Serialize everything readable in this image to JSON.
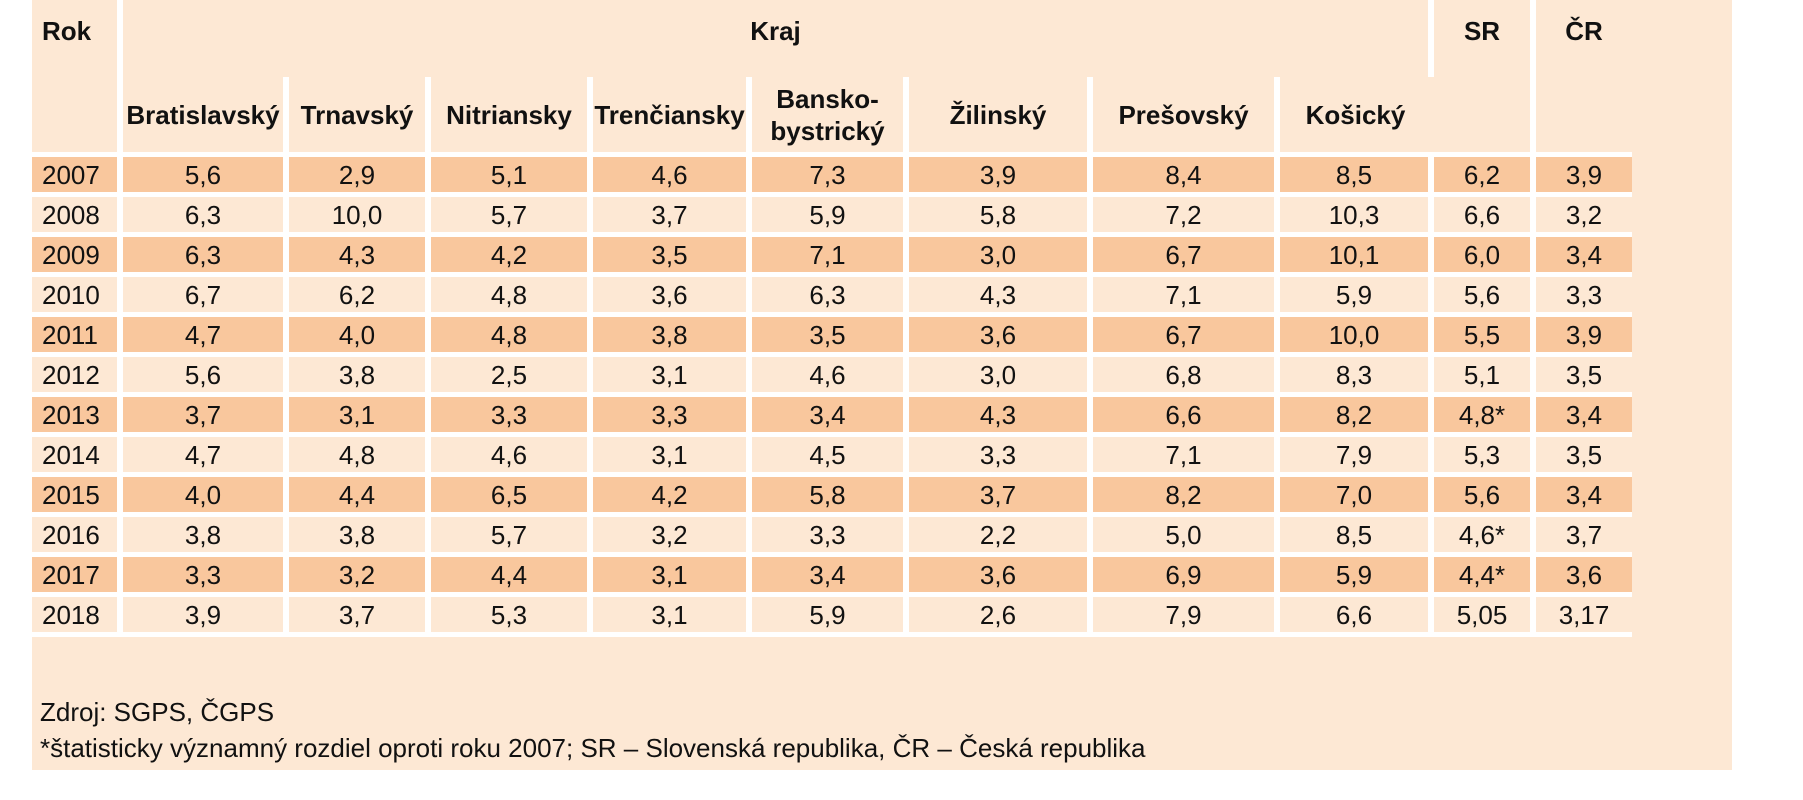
{
  "table": {
    "header": {
      "rok": "Rok",
      "kraj": "Kraj",
      "sr": "SR",
      "cr": "ČR",
      "regions": [
        "Bratislavský",
        "Trnavský",
        "Nitriansky",
        "Trenčiansky",
        "Bansko-\nbystrický",
        "Žilinský",
        "Prešovský",
        "Košický"
      ]
    },
    "rows": [
      {
        "year": "2007",
        "cells": [
          "5,6",
          "2,9",
          "5,1",
          "4,6",
          "7,3",
          "3,9",
          "8,4",
          "8,5",
          "6,2",
          "3,9"
        ]
      },
      {
        "year": "2008",
        "cells": [
          "6,3",
          "10,0",
          "5,7",
          "3,7",
          "5,9",
          "5,8",
          "7,2",
          "10,3",
          "6,6",
          "3,2"
        ]
      },
      {
        "year": "2009",
        "cells": [
          "6,3",
          "4,3",
          "4,2",
          "3,5",
          "7,1",
          "3,0",
          "6,7",
          "10,1",
          "6,0",
          "3,4"
        ]
      },
      {
        "year": "2010",
        "cells": [
          "6,7",
          "6,2",
          "4,8",
          "3,6",
          "6,3",
          "4,3",
          "7,1",
          "5,9",
          "5,6",
          "3,3"
        ]
      },
      {
        "year": "2011",
        "cells": [
          "4,7",
          "4,0",
          "4,8",
          "3,8",
          "3,5",
          "3,6",
          "6,7",
          "10,0",
          "5,5",
          "3,9"
        ]
      },
      {
        "year": "2012",
        "cells": [
          "5,6",
          "3,8",
          "2,5",
          "3,1",
          "4,6",
          "3,0",
          "6,8",
          "8,3",
          "5,1",
          "3,5"
        ]
      },
      {
        "year": "2013",
        "cells": [
          "3,7",
          "3,1",
          "3,3",
          "3,3",
          "3,4",
          "4,3",
          "6,6",
          "8,2",
          "4,8*",
          "3,4"
        ]
      },
      {
        "year": "2014",
        "cells": [
          "4,7",
          "4,8",
          "4,6",
          "3,1",
          "4,5",
          "3,3",
          "7,1",
          "7,9",
          "5,3",
          "3,5"
        ]
      },
      {
        "year": "2015",
        "cells": [
          "4,0",
          "4,4",
          "6,5",
          "4,2",
          "5,8",
          "3,7",
          "8,2",
          "7,0",
          "5,6",
          "3,4"
        ]
      },
      {
        "year": "2016",
        "cells": [
          "3,8",
          "3,8",
          "5,7",
          "3,2",
          "3,3",
          "2,2",
          "5,0",
          "8,5",
          "4,6*",
          "3,7"
        ]
      },
      {
        "year": "2017",
        "cells": [
          "3,3",
          "3,2",
          "4,4",
          "3,1",
          "3,4",
          "3,6",
          "6,9",
          "5,9",
          "4,4*",
          "3,6"
        ]
      },
      {
        "year": "2018",
        "cells": [
          "3,9",
          "3,7",
          "5,3",
          "3,1",
          "5,9",
          "2,6",
          "7,9",
          "6,6",
          "5,05",
          "3,17"
        ]
      }
    ]
  },
  "footnotes": {
    "source": "Zdroj: SGPS, ČGPS",
    "note": "*štatisticky významný rozdiel oproti roku 2007; SR – Slovenská republika, ČR – Česká republika"
  },
  "colors": {
    "header_bg": "#fde8d4",
    "row_dark": "#f9c79d",
    "row_light": "#fde8d4",
    "separator": "#ffffff"
  }
}
